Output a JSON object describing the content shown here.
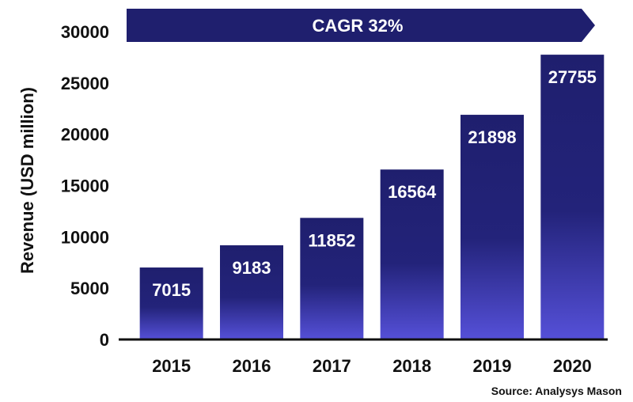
{
  "chart_data": {
    "type": "bar",
    "categories": [
      "2015",
      "2016",
      "2017",
      "2018",
      "2019",
      "2020"
    ],
    "values": [
      7015,
      9183,
      11852,
      16564,
      21898,
      27755
    ],
    "title": "",
    "xlabel": "",
    "ylabel": "Revenue (USD million)",
    "ylim": [
      0,
      30000
    ],
    "yticks": [
      0,
      5000,
      10000,
      15000,
      20000,
      25000,
      30000
    ],
    "data_labels": [
      "7015",
      "9183",
      "11852",
      "16564",
      "21898",
      "27755"
    ],
    "annotation": "CAGR 32%",
    "source": "Source: Analysys Mason",
    "grid": false,
    "legend": "none",
    "colors": {
      "bar_top": "#1f1f6e",
      "bar_bottom": "#5550d8",
      "banner": "#1f1f6e",
      "axis": "#111111"
    }
  }
}
